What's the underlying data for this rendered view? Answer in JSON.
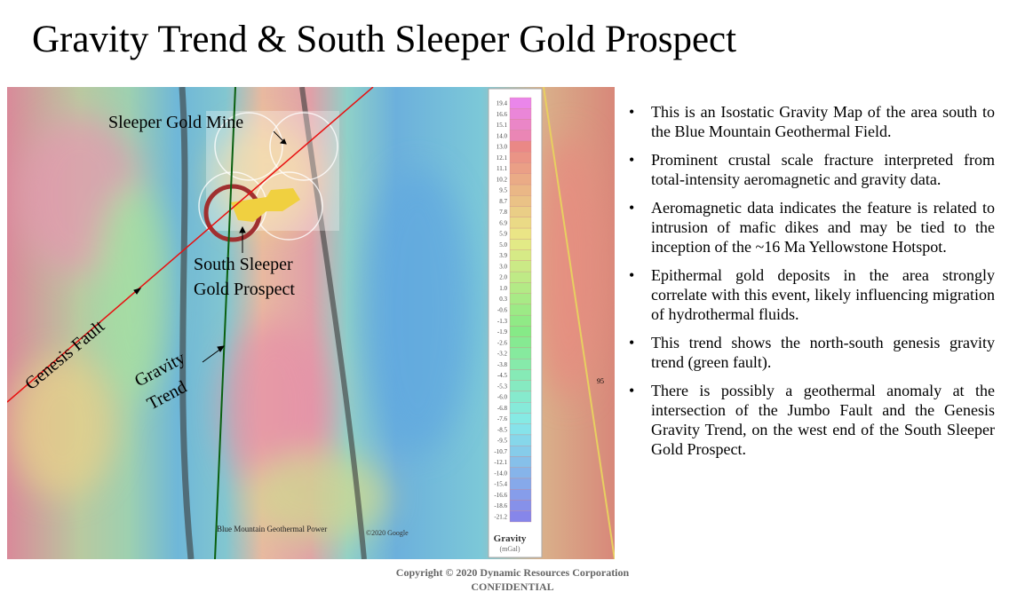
{
  "title": "Gravity Trend & South Sleeper Gold Prospect",
  "map": {
    "labels": {
      "mine": "Sleeper Gold Mine",
      "prospect_1": "South Sleeper",
      "prospect_2": "Gold Prospect",
      "fault": "Genesis Fault",
      "trend_1": "Gravity",
      "trend_2": "Trend",
      "power": "Blue Mountain Geothermal Power",
      "google": "©2020 Google",
      "highway": "95"
    },
    "legend": {
      "title": "Gravity",
      "unit": "(mGal)",
      "values": [
        "19.4",
        "16.6",
        "15.1",
        "14.0",
        "13.0",
        "12.1",
        "11.1",
        "10.2",
        "9.5",
        "8.7",
        "7.8",
        "6.9",
        "5.9",
        "5.0",
        "3.9",
        "3.0",
        "2.0",
        "1.0",
        "0.3",
        "-0.6",
        "-1.3",
        "-1.9",
        "-2.6",
        "-3.2",
        "-3.8",
        "-4.5",
        "-5.3",
        "-6.0",
        "-6.8",
        "-7.6",
        "-8.5",
        "-9.5",
        "-10.7",
        "-12.1",
        "-14.0",
        "-15.4",
        "-16.6",
        "-18.6",
        "-21.2"
      ]
    }
  },
  "bullets": [
    "This is an Isostatic Gravity Map of the area south to the Blue Mountain Geothermal Field.",
    "Prominent crustal scale fracture interpreted from total-intensity aeromagnetic and gravity data.",
    "Aeromagnetic data indicates the feature is related to intrusion of mafic dikes and may be tied to the inception of the ~16 Ma Yellowstone Hotspot.",
    "Epithermal gold deposits in the area strongly correlate with this event, likely influencing migration of hydrothermal fluids.",
    "This trend shows the north-south genesis gravity trend (green fault).",
    "There is possibly a geothermal anomaly at the intersection of the Jumbo Fault and the Genesis Gravity Trend, on the west end of the South Sleeper Gold Prospect."
  ],
  "footer": {
    "copyright": "Copyright © 2020 Dynamic Resources Corporation",
    "confidential": "CONFIDENTIAL"
  }
}
